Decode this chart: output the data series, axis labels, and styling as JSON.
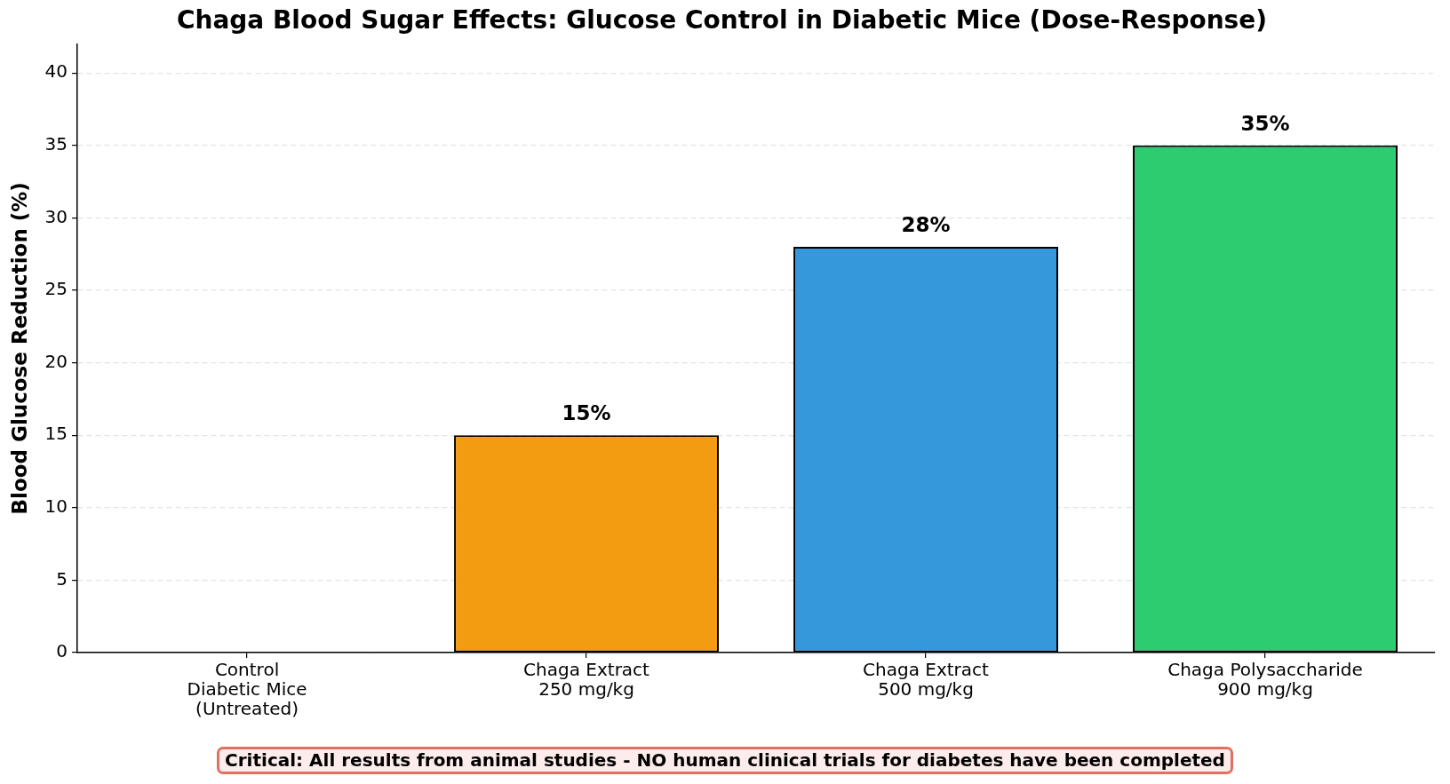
{
  "chart_data": {
    "type": "bar",
    "title": "Chaga Blood Sugar Effects: Glucose Control in Diabetic Mice (Dose-Response)",
    "ylabel": "Blood Glucose Reduction (%)",
    "categories": [
      "Control\nDiabetic Mice\n(Untreated)",
      "Chaga Extract\n250 mg/kg",
      "Chaga Extract\n500 mg/kg",
      "Chaga Polysaccharide\n900 mg/kg"
    ],
    "values": [
      0,
      15,
      28,
      35
    ],
    "colors": [
      "#95a5a6",
      "#f39c12",
      "#3498db",
      "#2ecc71"
    ],
    "value_labels": [
      null,
      "15%",
      "28%",
      "35%"
    ],
    "ylim": [
      0,
      42
    ],
    "yticks": [
      0,
      5,
      10,
      15,
      20,
      25,
      30,
      35,
      40
    ],
    "grid": "y",
    "annotations": [
      "Critical: All results from animal studies - NO human clinical trials for diabetes have been completed"
    ]
  }
}
